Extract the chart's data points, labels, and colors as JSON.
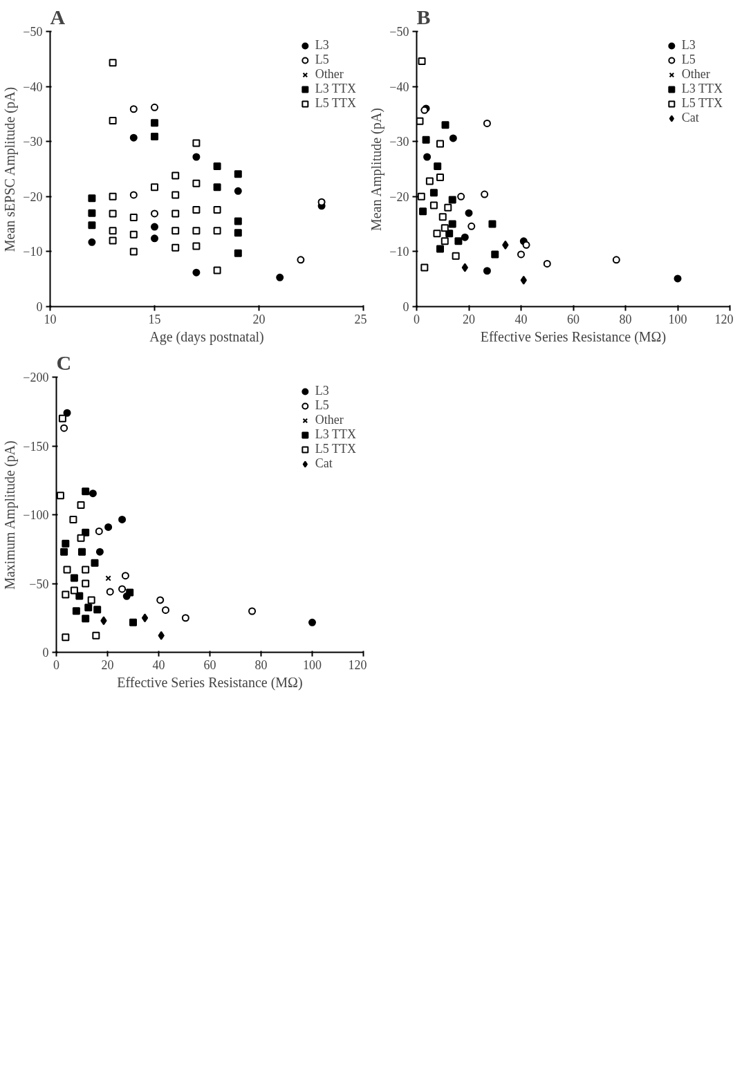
{
  "chart_data": [
    {
      "type": "scatter",
      "title": "A",
      "xlabel": "Age (days postnatal)",
      "ylabel": "Mean sEPSC Amplitude (pA)",
      "xlim": [
        10,
        25
      ],
      "ylim": [
        0,
        -50
      ],
      "xticks": [
        10,
        15,
        20,
        25
      ],
      "yticks": [
        -50,
        -40,
        -30,
        -20,
        -10,
        0
      ],
      "grid": false,
      "legend": "top right",
      "series": [
        {
          "name": "L3",
          "color": "#000000",
          "marker": "circle",
          "x": [
            14,
            15,
            15,
            17,
            17,
            19,
            23,
            21,
            12
          ],
          "values": [
            -30.7,
            -14.5,
            -12.4,
            -27.2,
            -6.2,
            -21,
            -18.3,
            -5.3,
            -11.7
          ]
        },
        {
          "name": "L5",
          "color": "#ffffff",
          "marker": "circle",
          "x": [
            14,
            15,
            15,
            14,
            22,
            23
          ],
          "values": [
            -35.9,
            -36.2,
            -16.9,
            -20.3,
            -8.5,
            -19
          ]
        },
        {
          "name": "Other",
          "color": "#000000",
          "marker": "cross"
        },
        {
          "name": "L3 TTX",
          "color": "#000000",
          "marker": "square",
          "x": [
            15,
            15,
            12,
            12,
            12,
            18,
            18,
            19,
            19,
            19,
            19
          ],
          "values": [
            -33.4,
            -30.9,
            -19.7,
            -17,
            -14.8,
            -25.5,
            -21.7,
            -24.1,
            -15.5,
            -13.4,
            -9.7
          ]
        },
        {
          "name": "L5 TTX",
          "color": "#ffffff",
          "marker": "square",
          "x": [
            13,
            13,
            17,
            17,
            17,
            17,
            17,
            16,
            16,
            16,
            16,
            16,
            15,
            14,
            14,
            14,
            13,
            13,
            13,
            13,
            18,
            18,
            18
          ],
          "values": [
            -44.3,
            -33.8,
            -29.7,
            -22.4,
            -17.6,
            -13.8,
            -11,
            -23.8,
            -20.3,
            -16.9,
            -13.8,
            -10.7,
            -21.7,
            -16.2,
            -13.1,
            -10,
            -20,
            -16.9,
            -13.8,
            -12,
            -17.6,
            -13.8,
            -6.6
          ]
        }
      ]
    },
    {
      "type": "scatter",
      "title": "B",
      "xlabel": "Effective Series Resistance (MΩ)",
      "ylabel": "Mean Amplitude (pA)",
      "xlim": [
        0,
        120
      ],
      "ylim": [
        0,
        -50
      ],
      "xticks": [
        0,
        20,
        40,
        60,
        80,
        100,
        120
      ],
      "yticks": [
        -50,
        -40,
        -30,
        -20,
        -10,
        0
      ],
      "grid": false,
      "legend": "top right",
      "series": [
        {
          "name": "L3",
          "color": "#000000",
          "marker": "circle",
          "x": [
            100,
            41,
            27,
            20,
            14,
            4,
            3.6,
            18.5
          ],
          "values": [
            -5.1,
            -11.9,
            -6.5,
            -17,
            -30.6,
            -27.2,
            -36,
            -12.6
          ]
        },
        {
          "name": "L5",
          "color": "#ffffff",
          "marker": "circle",
          "x": [
            76.5,
            50,
            42,
            40,
            26,
            27,
            21,
            17,
            3
          ],
          "values": [
            -8.5,
            -7.8,
            -11.2,
            -9.5,
            -20.4,
            -33.3,
            -14.6,
            -20,
            -35.7
          ]
        },
        {
          "name": "Other",
          "color": "#000000",
          "marker": "cross"
        },
        {
          "name": "L3 TTX",
          "color": "#000000",
          "marker": "square",
          "x": [
            30,
            29,
            11,
            3.6,
            8,
            6.6,
            2.4,
            13.7,
            13.7,
            16,
            9,
            12.5
          ],
          "values": [
            -9.5,
            -15,
            -33,
            -30.3,
            -25.5,
            -20.7,
            -17.3,
            -19.4,
            -15,
            -11.9,
            -10.5,
            -13.3
          ]
        },
        {
          "name": "L5 TTX",
          "color": "#ffffff",
          "marker": "square",
          "x": [
            3,
            9,
            2,
            1.2,
            9,
            5,
            6.6,
            1.8,
            12,
            10,
            10.8,
            7.8,
            10.8,
            15
          ],
          "values": [
            -7.1,
            -29.6,
            -44.6,
            -33.7,
            -23.5,
            -22.8,
            -18.4,
            -20,
            -18,
            -16.3,
            -14.3,
            -13.3,
            -11.9,
            -9.2
          ]
        },
        {
          "name": "Cat",
          "color": "#000000",
          "marker": "diamond",
          "x": [
            41,
            34,
            18.5
          ],
          "values": [
            -4.8,
            -11.2,
            -7.1
          ]
        }
      ]
    },
    {
      "type": "scatter",
      "title": "C",
      "xlabel": "Effective Series Resistance (MΩ)",
      "ylabel": "Maximum Amplitude (pA)",
      "xlim": [
        0,
        120
      ],
      "ylim": [
        0,
        -200
      ],
      "xticks": [
        0,
        20,
        40,
        60,
        80,
        100,
        120
      ],
      "yticks": [
        -200,
        -150,
        -100,
        -50,
        0
      ],
      "grid": false,
      "legend": "top right",
      "series": [
        {
          "name": "L3",
          "color": "#000000",
          "marker": "circle",
          "x": [
            100,
            27.5,
            25.7,
            20.3,
            14.3,
            4.2,
            17
          ],
          "values": [
            -21.7,
            -40.8,
            -96.5,
            -91,
            -115.5,
            -174,
            -73
          ]
        },
        {
          "name": "L5",
          "color": "#ffffff",
          "marker": "circle",
          "x": [
            76.5,
            50.5,
            40.6,
            42.7,
            27,
            25.7,
            21,
            16.7,
            3
          ],
          "values": [
            -29.9,
            -25,
            -38,
            -30.7,
            -55.7,
            -46,
            -44,
            -88,
            -163
          ]
        },
        {
          "name": "Other",
          "color": "#000000",
          "marker": "cross",
          "x": [
            20.3
          ],
          "values": [
            -53.8
          ]
        },
        {
          "name": "L3 TTX",
          "color": "#000000",
          "marker": "square",
          "x": [
            30,
            28.7,
            11.4,
            3.6,
            3,
            11.4,
            10,
            15,
            7,
            9,
            12.5,
            7.8,
            11.4,
            16
          ],
          "values": [
            -21.7,
            -43.5,
            -117,
            -79,
            -73,
            -87,
            -73,
            -65,
            -54,
            -41,
            -32.6,
            -30,
            -24.5,
            -31
          ]
        },
        {
          "name": "L5 TTX",
          "color": "#ffffff",
          "marker": "square",
          "x": [
            9.6,
            6.6,
            1.6,
            2.4,
            15.5,
            3.6,
            9.6,
            11.4,
            4.2,
            11.4,
            7,
            3.6,
            13.7
          ],
          "values": [
            -107,
            -96.5,
            -114,
            -170,
            -12.2,
            -10.9,
            -83,
            -60,
            -60,
            -50,
            -45,
            -42,
            -38
          ]
        },
        {
          "name": "Cat",
          "color": "#000000",
          "marker": "diamond",
          "x": [
            41,
            34.6,
            18.5
          ],
          "values": [
            -12.2,
            -25,
            -23
          ]
        }
      ]
    }
  ]
}
